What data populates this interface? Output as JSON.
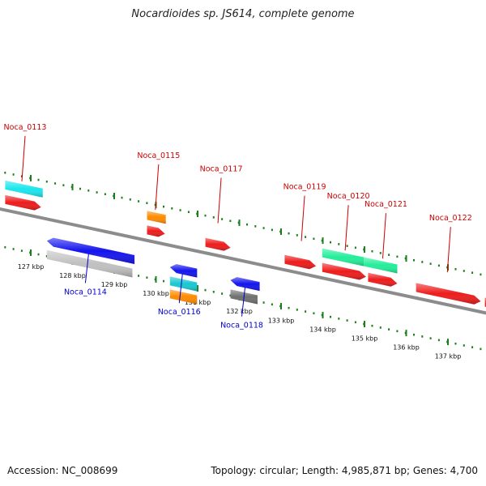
{
  "title": "Nocardioides sp. JS614, complete genome",
  "footer": {
    "accession": "Accession: NC_008699",
    "summary": "Topology: circular; Length: 4,985,871 bp; Genes: 4,700"
  },
  "colors": {
    "forward_label": "#cc0000",
    "reverse_label": "#0000cc",
    "tick": "#1a7f1a",
    "backbone": "#8c8c8c"
  },
  "ticks": [
    "127 kbp",
    "128 kbp",
    "129 kbp",
    "130 kbp",
    "131 kbp",
    "132 kbp",
    "133 kbp",
    "134 kbp",
    "135 kbp",
    "136 kbp",
    "137 kbp"
  ],
  "features": [
    {
      "name": "",
      "color": "#19e6ec",
      "lane": "f2",
      "start": -0.4,
      "end": 0.5
    },
    {
      "name": "",
      "color": "#ee1c1c",
      "lane": "f1",
      "start": -0.4,
      "end": 0.46
    },
    {
      "name": "",
      "color": "#ff8a00",
      "lane": "f2",
      "start": 3.0,
      "end": 3.45
    },
    {
      "name": "",
      "color": "#ee1c1c",
      "lane": "f1",
      "start": 3.0,
      "end": 3.43
    },
    {
      "name": "",
      "color": "#ee1c1c",
      "lane": "f1",
      "start": 4.4,
      "end": 5.0
    },
    {
      "name": "",
      "color": "#ee1c1c",
      "lane": "f1",
      "start": 6.3,
      "end": 7.05
    },
    {
      "name": "",
      "color": "#22ee99",
      "lane": "f2",
      "start": 7.2,
      "end": 8.2
    },
    {
      "name": "",
      "color": "#22ee99",
      "lane": "f2",
      "start": 8.2,
      "end": 9.0
    },
    {
      "name": "",
      "color": "#ee1c1c",
      "lane": "f1",
      "start": 7.2,
      "end": 8.25
    },
    {
      "name": "",
      "color": "#ee1c1c",
      "lane": "f1",
      "start": 8.3,
      "end": 9.0
    },
    {
      "name": "",
      "color": "#ee1c1c",
      "lane": "f1",
      "start": 9.45,
      "end": 11.0
    },
    {
      "name": "",
      "color": "#ee1c1c",
      "lane": "f1",
      "start": 11.1,
      "end": 11.65
    },
    {
      "name": "",
      "color": "#1414ee",
      "lane": "r1",
      "start": 0.6,
      "end": 2.7
    },
    {
      "name": "",
      "color": "#c0c0c0",
      "lane": "r2",
      "start": 0.6,
      "end": 2.65
    },
    {
      "name": "",
      "color": "#1414ee",
      "lane": "r1",
      "start": 3.55,
      "end": 4.2
    },
    {
      "name": "",
      "color": "#19c8d0",
      "lane": "r2",
      "start": 3.55,
      "end": 4.2
    },
    {
      "name": "",
      "color": "#ff8a00",
      "lane": "r3",
      "start": 3.55,
      "end": 4.2
    },
    {
      "name": "",
      "color": "#1414ee",
      "lane": "r1",
      "start": 5.0,
      "end": 5.7
    },
    {
      "name": "",
      "color": "#707070",
      "lane": "r2",
      "start": 5.0,
      "end": 5.65
    }
  ],
  "gene_labels": [
    {
      "name": "Noca_0113",
      "strand": "forward",
      "gene_pos": 0.0
    },
    {
      "name": "Noca_0115",
      "strand": "forward",
      "gene_pos": 3.2
    },
    {
      "name": "Noca_0117",
      "strand": "forward",
      "gene_pos": 4.7
    },
    {
      "name": "Noca_0119",
      "strand": "forward",
      "gene_pos": 6.7
    },
    {
      "name": "Noca_0120",
      "strand": "forward",
      "gene_pos": 7.75
    },
    {
      "name": "Noca_0121",
      "strand": "forward",
      "gene_pos": 8.65
    },
    {
      "name": "Noca_0122",
      "strand": "forward",
      "gene_pos": 10.2
    },
    {
      "name": "Noca_0114",
      "strand": "reverse",
      "gene_pos": 1.6
    },
    {
      "name": "Noca_0116",
      "strand": "reverse",
      "gene_pos": 3.85
    },
    {
      "name": "Noca_0118",
      "strand": "reverse",
      "gene_pos": 5.35
    }
  ]
}
